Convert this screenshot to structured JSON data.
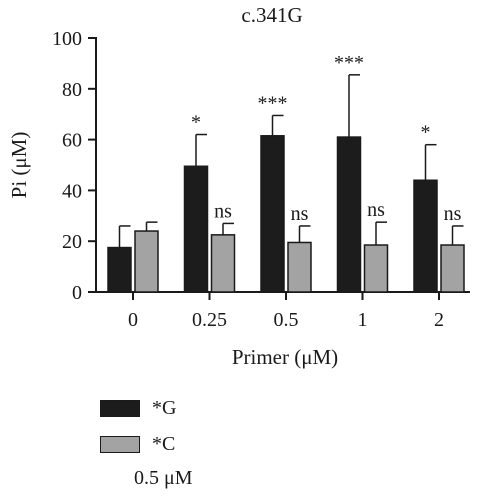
{
  "chart_data": {
    "type": "bar",
    "title": "c.341G",
    "xlabel": "Primer (μM)",
    "ylabel": "Pi (μM)",
    "categories": [
      "0",
      "0.25",
      "0.5",
      "1",
      "2"
    ],
    "ylim": [
      0,
      100
    ],
    "yticks": [
      "0",
      "20",
      "40",
      "60",
      "80",
      "100"
    ],
    "series": [
      {
        "name": "*G",
        "color": "#1c1c1c",
        "values": [
          17.5,
          49.5,
          61.5,
          61,
          44
        ],
        "error": [
          8.5,
          12.5,
          8,
          24.5,
          14
        ],
        "annotations": [
          "",
          "*",
          "***",
          "***",
          "*"
        ]
      },
      {
        "name": "*C",
        "color": "#a3a3a3",
        "values": [
          24,
          22.5,
          19.5,
          18.5,
          18.5
        ],
        "error": [
          3.5,
          4.5,
          6.5,
          9,
          7.5
        ],
        "annotations": [
          "",
          "ns",
          "ns",
          "ns",
          "ns"
        ]
      }
    ],
    "legend_position": "bottom-left",
    "grid": false
  },
  "legend_note": "0.5 μM"
}
